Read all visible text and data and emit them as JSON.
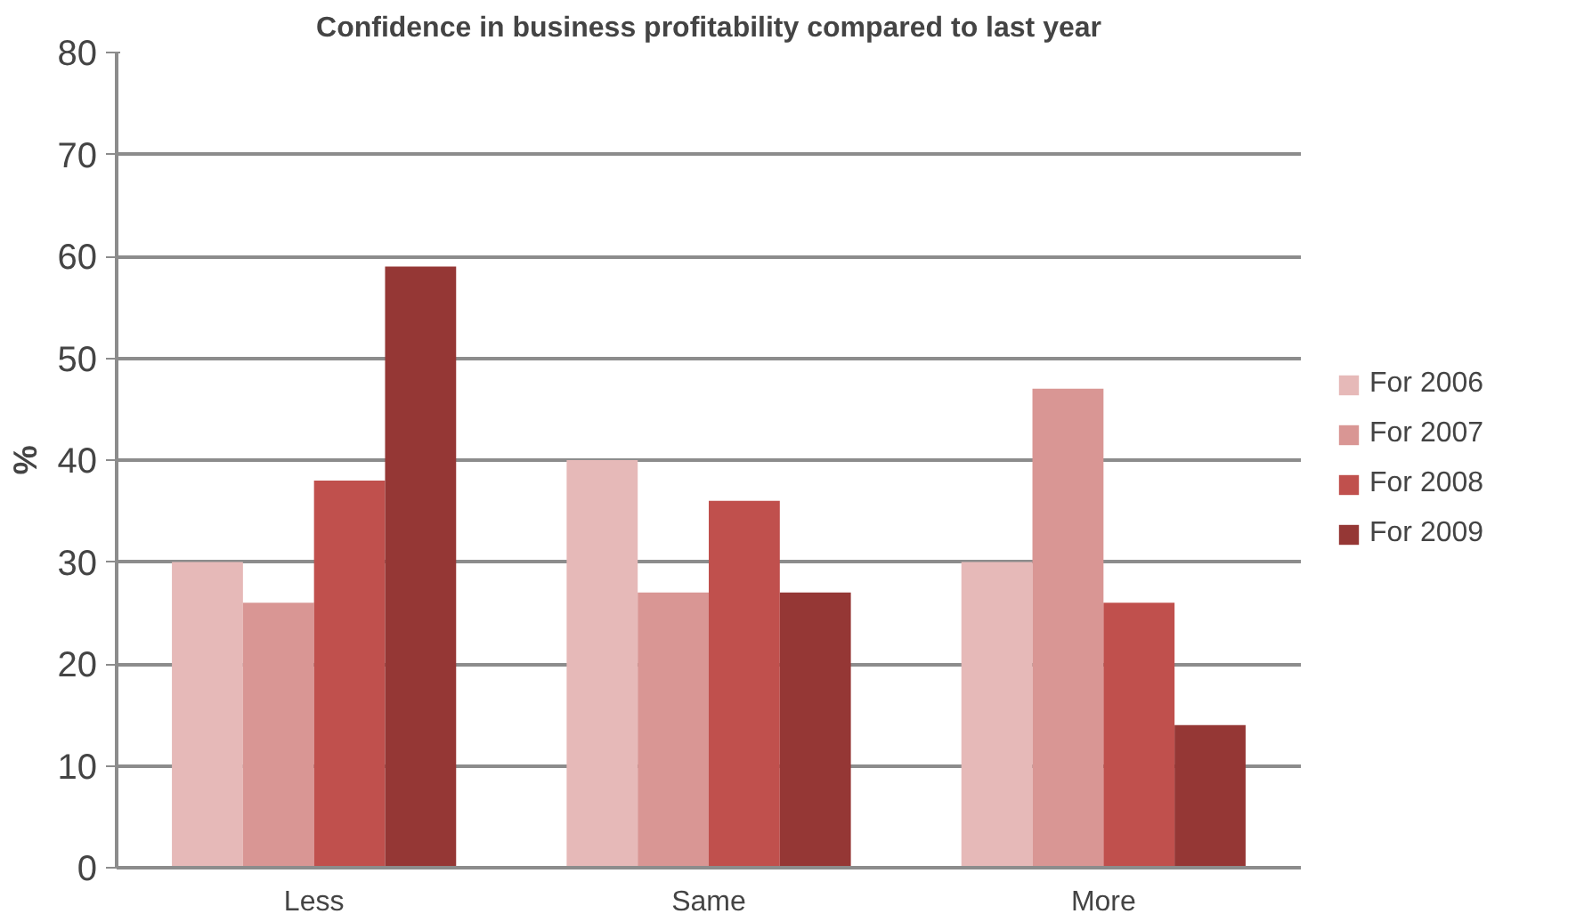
{
  "chart_data": {
    "type": "bar",
    "title": "Confidence in business profitability compared to last year",
    "ylabel": "%",
    "categories": [
      "Less",
      "Same",
      "More"
    ],
    "series": [
      {
        "name": "For 2006",
        "color": "#e6b9b8",
        "values": [
          30,
          40,
          30
        ]
      },
      {
        "name": "For 2007",
        "color": "#d99694",
        "values": [
          26,
          27,
          47
        ]
      },
      {
        "name": "For 2008",
        "color": "#c0504d",
        "values": [
          38,
          36,
          26
        ]
      },
      {
        "name": "For 2009",
        "color": "#953735",
        "values": [
          59,
          27,
          14
        ]
      }
    ],
    "ylim": [
      0,
      80
    ],
    "yticks": [
      0,
      10,
      20,
      30,
      40,
      50,
      60,
      70,
      80
    ],
    "grid": "y",
    "legend": "right"
  }
}
